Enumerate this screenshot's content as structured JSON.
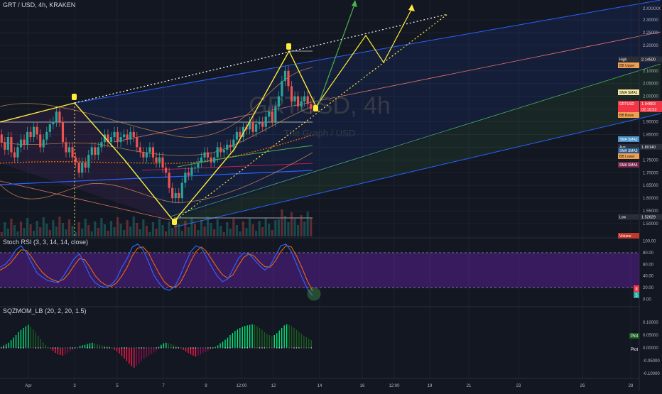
{
  "header": {
    "symbol_title": "GRT / USD, 4h, KRAKEN"
  },
  "watermark": {
    "symbol": "GRTUSD, 4h",
    "name": "The Graph / USD"
  },
  "price_axis": {
    "ticks": [
      "1.50000",
      "1.55000",
      "1.60000",
      "1.65000",
      "1.70000",
      "1.75000",
      "1.80000",
      "1.85000",
      "1.90000",
      "1.95000",
      "2.00000",
      "2.05000",
      "2.10000",
      "2.15000",
      "2.20000",
      "2.25000",
      "2.30000",
      "2.XXXXX"
    ]
  },
  "price_labels": [
    {
      "id": "high",
      "text": "High",
      "value": "2.14500",
      "color": "#2a2e39"
    },
    {
      "id": "bb-upper",
      "text": "BB Upper",
      "value": "",
      "color": "#f0a050"
    },
    {
      "id": "sma-sma1",
      "text": "SMA SMA1",
      "value": "",
      "color": "#f5e6a0"
    },
    {
      "id": "grtusd",
      "text": "GRTUSD",
      "value": "1.94863",
      "color": "#f23645"
    },
    {
      "id": "grtusd-time",
      "text": "",
      "value": "02:19:53",
      "color": "#f23645"
    },
    {
      "id": "bb-basis",
      "text": "BB Basis",
      "value": "",
      "color": "#f0a050"
    },
    {
      "id": "sma-sma2",
      "text": "SMA SMA2",
      "value": "",
      "color": "#4a90c8"
    },
    {
      "id": "avg",
      "text": "Avg",
      "value": "1.80140",
      "color": "#2a2e39"
    },
    {
      "id": "sma-sma3",
      "text": "SMA SMA3",
      "value": "",
      "color": "#2a5a8a"
    },
    {
      "id": "bb-lower",
      "text": "BB Lower",
      "value": "",
      "color": "#f0a050"
    },
    {
      "id": "sma-sma4",
      "text": "SMA SMA4",
      "value": "",
      "color": "#7a2a4a"
    },
    {
      "id": "low",
      "text": "Low",
      "value": "1.52629",
      "color": "#2a2e39"
    },
    {
      "id": "volume",
      "text": "Volume",
      "value": "",
      "color": "#c0392b"
    }
  ],
  "stoch": {
    "title": "Stoch RSI (3, 3, 14, 14, close)",
    "ticks": [
      "100.00",
      "80.00",
      "60.00",
      "40.00",
      "20.00",
      "0.00"
    ],
    "value_k": "8",
    "value_d": "5",
    "upper": 80,
    "lower": 20,
    "k": [
      55,
      60,
      70,
      85,
      92,
      80,
      62,
      45,
      38,
      32,
      30,
      28,
      40,
      55,
      70,
      78,
      60,
      40,
      28,
      22,
      20,
      25,
      35,
      55,
      70,
      90,
      95,
      85,
      65,
      42,
      28,
      18,
      15,
      22,
      40,
      62,
      82,
      92,
      88,
      72,
      55,
      40,
      30,
      35,
      52,
      70,
      80,
      78,
      68,
      58,
      50,
      58,
      75,
      92,
      95,
      82,
      60,
      38,
      18,
      6
    ],
    "d": [
      50,
      55,
      62,
      74,
      85,
      84,
      72,
      58,
      46,
      38,
      33,
      30,
      34,
      44,
      58,
      70,
      68,
      55,
      40,
      30,
      24,
      22,
      28,
      40,
      55,
      75,
      88,
      90,
      80,
      62,
      45,
      30,
      22,
      20,
      28,
      45,
      65,
      82,
      90,
      82,
      68,
      54,
      42,
      36,
      42,
      58,
      72,
      78,
      74,
      64,
      56,
      55,
      66,
      82,
      92,
      90,
      74,
      54,
      32,
      14
    ]
  },
  "sqzmom": {
    "title": "SQZMOM_LB (20, 2, 20, 1.5)",
    "ticks": [
      "0.10000",
      "0.05000",
      "0.00000",
      "-0.05000",
      "-0.10000"
    ],
    "plot_labels": [
      "Plot",
      "Plot"
    ],
    "values": [
      0.005,
      0.01,
      0.015,
      0.02,
      0.03,
      0.04,
      0.05,
      0.062,
      0.07,
      0.078,
      0.085,
      0.09,
      0.082,
      0.072,
      0.06,
      0.048,
      0.035,
      0.022,
      0.012,
      0.004,
      -0.005,
      -0.012,
      -0.02,
      -0.025,
      -0.028,
      -0.03,
      -0.026,
      -0.02,
      -0.014,
      -0.008,
      -0.003,
      0.003,
      0.008,
      0.01,
      0.012,
      0.015,
      0.018,
      0.02,
      0.017,
      0.014,
      0.012,
      0.01,
      0.008,
      0.006,
      0.004,
      -0.003,
      -0.008,
      -0.014,
      -0.022,
      -0.032,
      -0.042,
      -0.052,
      -0.062,
      -0.072,
      -0.078,
      -0.07,
      -0.062,
      -0.052,
      -0.044,
      -0.036,
      -0.03,
      -0.024,
      -0.018,
      -0.012,
      0.006,
      0.012,
      0.018,
      0.02,
      0.018,
      0.015,
      0.012,
      0.008,
      0.004,
      -0.004,
      -0.008,
      -0.014,
      -0.02,
      -0.026,
      -0.03,
      -0.034,
      -0.03,
      -0.026,
      -0.02,
      -0.016,
      -0.012,
      -0.006,
      -0.002,
      0.004,
      0.01,
      0.018,
      0.024,
      0.032,
      0.04,
      0.05,
      0.058,
      0.066,
      0.072,
      0.078,
      0.082,
      0.086,
      0.088,
      0.09,
      0.092,
      0.09,
      0.085,
      0.078,
      0.07,
      0.062,
      0.055,
      0.05,
      0.045,
      0.05,
      0.058,
      0.068,
      0.078,
      0.088,
      0.092,
      0.09,
      0.085,
      0.078,
      0.07,
      0.062,
      0.055,
      0.048,
      0.042,
      0.036,
      0.03
    ]
  },
  "time_axis": {
    "labels": [
      "Apr",
      "3",
      "5",
      "7",
      "9",
      "12:00",
      "12",
      "14",
      "16",
      "12:00",
      "19",
      "21",
      "23",
      "26",
      "28"
    ]
  },
  "colors": {
    "bull": "#26a69a",
    "bear": "#ef5350",
    "yellow": "#ffeb3b",
    "green_arrow": "#4caf50",
    "stoch_k": "#2962ff",
    "stoch_d": "#ff6d00"
  },
  "chart_data": {
    "type": "candlestick",
    "price_ylim": [
      1.5,
      2.3
    ],
    "closes": [
      1.82,
      1.79,
      1.84,
      1.78,
      1.76,
      1.8,
      1.83,
      1.81,
      1.86,
      1.84,
      1.88,
      1.85,
      1.8,
      1.83,
      1.86,
      1.89,
      1.9,
      1.94,
      1.9,
      1.82,
      1.78,
      1.8,
      1.76,
      1.74,
      1.7,
      1.74,
      1.72,
      1.77,
      1.8,
      1.77,
      1.8,
      1.82,
      1.85,
      1.82,
      1.84,
      1.86,
      1.82,
      1.84,
      1.85,
      1.83,
      1.86,
      1.84,
      1.8,
      1.78,
      1.76,
      1.78,
      1.8,
      1.76,
      1.74,
      1.76,
      1.72,
      1.7,
      1.64,
      1.6,
      1.62,
      1.6,
      1.66,
      1.7,
      1.69,
      1.72,
      1.72,
      1.74,
      1.76,
      1.78,
      1.76,
      1.74,
      1.76,
      1.8,
      1.78,
      1.79,
      1.81,
      1.8,
      1.83,
      1.86,
      1.84,
      1.88,
      1.87,
      1.9,
      1.86,
      1.89,
      1.9,
      1.88,
      1.92,
      1.94,
      1.9,
      1.96,
      2.0,
      2.06,
      2.1,
      2.04,
      1.98,
      2.0,
      1.96,
      1.98,
      2.0,
      1.97,
      1.95
    ],
    "high": 2.145,
    "low": 1.52629,
    "last": 1.94863,
    "avg": 1.8014
  }
}
